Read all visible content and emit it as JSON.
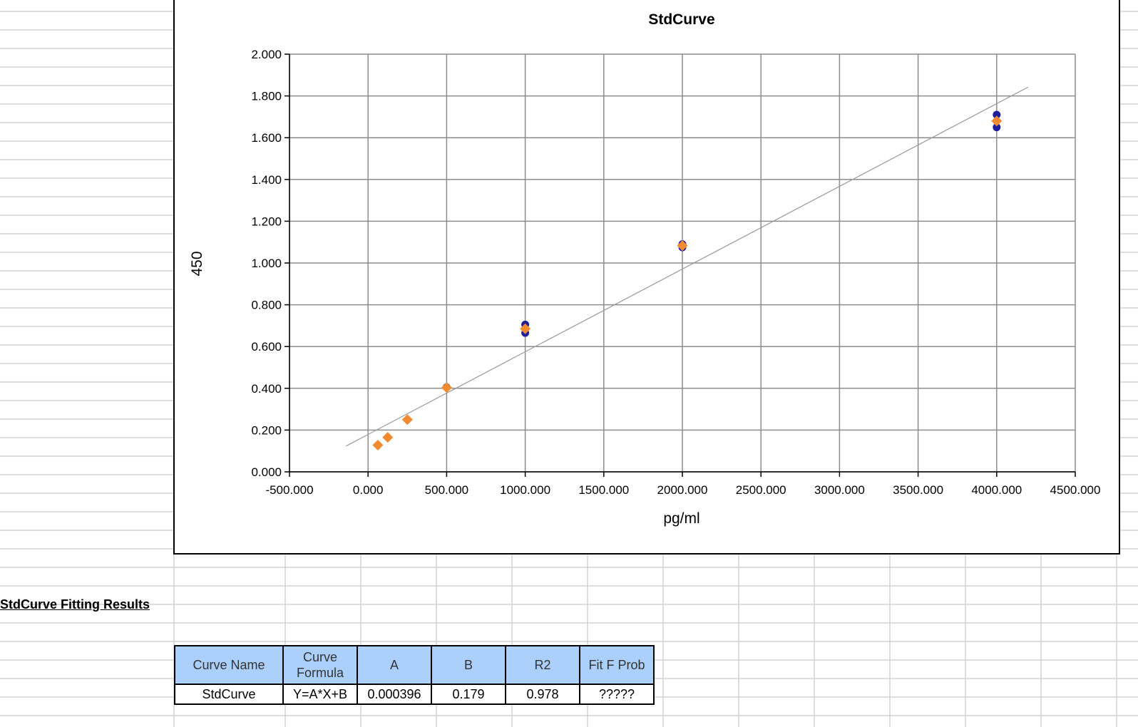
{
  "chart_data": {
    "type": "scatter",
    "title": "StdCurve",
    "xlabel": "pg/ml",
    "ylabel": "450",
    "xlim": [
      -500,
      4500
    ],
    "ylim": [
      0,
      2
    ],
    "x_ticks": [
      "-500.000",
      "0.000",
      "500.000",
      "1000.000",
      "1500.000",
      "2000.000",
      "2500.000",
      "3000.000",
      "3500.000",
      "4000.000",
      "4500.000"
    ],
    "y_ticks": [
      "0.000",
      "0.200",
      "0.400",
      "0.600",
      "0.800",
      "1.000",
      "1.200",
      "1.400",
      "1.600",
      "1.800",
      "2.000"
    ],
    "grid": true,
    "series": [
      {
        "marker": "circle",
        "color": "#1f1f9e",
        "points": [
          {
            "x": 500,
            "y": 0.405
          },
          {
            "x": 1000,
            "y": 0.705
          },
          {
            "x": 1000,
            "y": 0.665
          },
          {
            "x": 2000,
            "y": 1.09
          },
          {
            "x": 2000,
            "y": 1.075
          },
          {
            "x": 4000,
            "y": 1.71
          },
          {
            "x": 4000,
            "y": 1.65
          }
        ]
      },
      {
        "marker": "diamond",
        "color": "#f28a30",
        "points": [
          {
            "x": 62.5,
            "y": 0.128
          },
          {
            "x": 125,
            "y": 0.165
          },
          {
            "x": 250,
            "y": 0.25
          },
          {
            "x": 500,
            "y": 0.403
          },
          {
            "x": 1000,
            "y": 0.685
          },
          {
            "x": 2000,
            "y": 1.083
          },
          {
            "x": 4000,
            "y": 1.68
          }
        ]
      }
    ],
    "fit_line": {
      "color": "#999999",
      "slope": 0.000396,
      "intercept": 0.179,
      "x_range": [
        -140,
        4200
      ]
    }
  },
  "results": {
    "heading": "StdCurve Fitting Results",
    "headers": [
      "Curve Name",
      "Curve Formula",
      "A",
      "B",
      "R2",
      "Fit F Prob"
    ],
    "row": [
      "StdCurve",
      "Y=A*X+B",
      "0.000396",
      "0.179",
      "0.978",
      "?????"
    ]
  }
}
